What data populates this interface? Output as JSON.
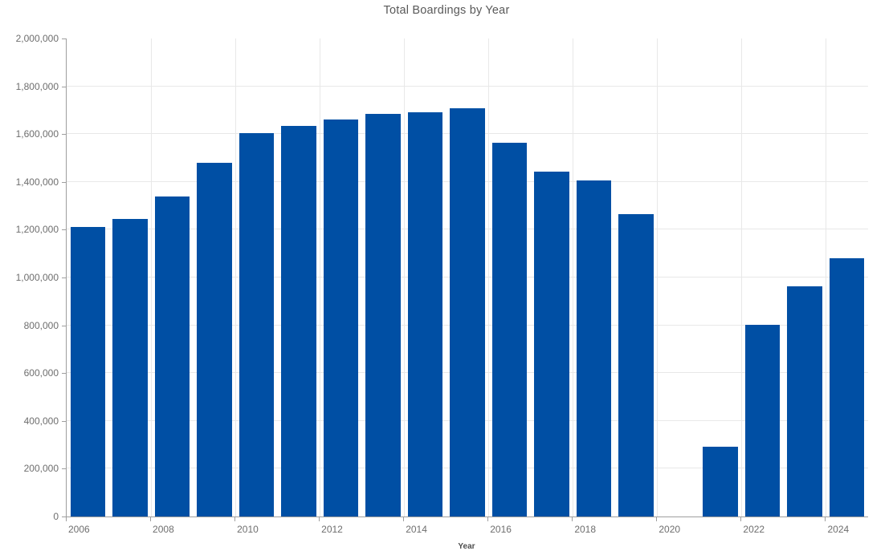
{
  "colors": {
    "background": "#ffffff",
    "bar": "#004FA4",
    "grid": "#e8e8e8",
    "axis": "#9e9e9e",
    "tick_label": "#6e6e6e",
    "title": "#595959",
    "axis_title": "#4d4d4d"
  },
  "chart_data": {
    "type": "bar",
    "title": "Total Boardings by Year",
    "xlabel": "Year",
    "ylabel": "",
    "categories": [
      "2006",
      "2007",
      "2008",
      "2009",
      "2010",
      "2011",
      "2012",
      "2013",
      "2014",
      "2015",
      "2016",
      "2017",
      "2018",
      "2019",
      "2020",
      "2021",
      "2022",
      "2023",
      "2024"
    ],
    "values": [
      1210000,
      1246000,
      1340000,
      1480000,
      1604000,
      1634000,
      1660000,
      1686000,
      1690000,
      1708000,
      1564000,
      1443000,
      1407000,
      1264000,
      0,
      293000,
      803000,
      964000,
      1082000
    ],
    "ylim": [
      0,
      2000000
    ],
    "y_tick_interval": 200000,
    "x_tick_labels": [
      "2006",
      "2008",
      "2010",
      "2012",
      "2014",
      "2016",
      "2018",
      "2020",
      "2022",
      "2024"
    ],
    "grid": true,
    "legend": false,
    "notes": "no bar rendered for 2020"
  }
}
